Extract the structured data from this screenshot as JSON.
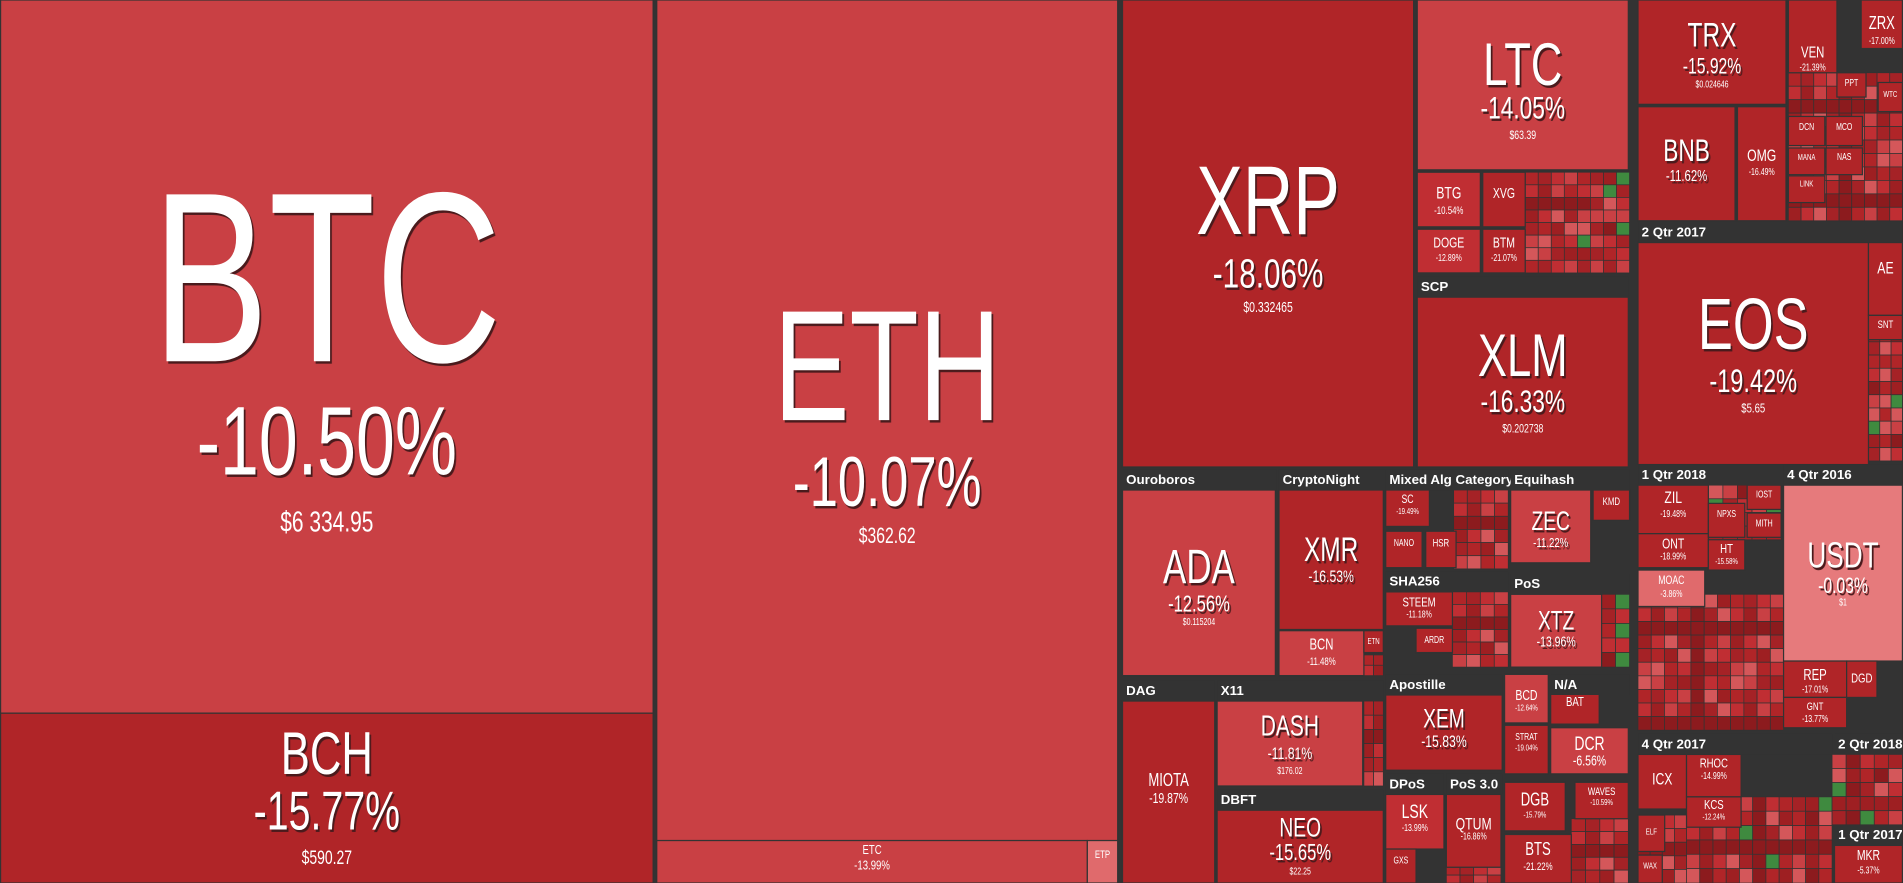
{
  "tiles": [
    {
      "symbol": "BTC",
      "change": "-10.50%",
      "price": "$6 334.95"
    },
    {
      "symbol": "BCH",
      "change": "-15.77%",
      "price": "$590.27"
    },
    {
      "symbol": "ETH",
      "change": "-10.07%",
      "price": "$362.62"
    },
    {
      "symbol": "ETC",
      "change": "-13.99%"
    },
    {
      "symbol": "ETP"
    },
    {
      "symbol": "XRP",
      "change": "-18.06%",
      "price": "$0.332465"
    },
    {
      "symbol": "LTC",
      "change": "-14.05%",
      "price": "$63.39"
    },
    {
      "symbol": "BTG",
      "change": "-10.54%"
    },
    {
      "symbol": "XVG"
    },
    {
      "symbol": "DOGE",
      "change": "-12.89%"
    },
    {
      "symbol": "BTM",
      "change": "-21.07%"
    },
    {
      "symbol": "XLM",
      "change": "-16.33%",
      "price": "$0.202738"
    },
    {
      "symbol": "TRX",
      "change": "-15.92%",
      "price": "$0.024646"
    },
    {
      "symbol": "VEN",
      "change": "-21.39%"
    },
    {
      "symbol": "ZRX",
      "change": "-17.00%"
    },
    {
      "symbol": "BNB",
      "change": "-11.62%"
    },
    {
      "symbol": "OMG",
      "change": "-16.49%"
    },
    {
      "symbol": "EOS",
      "change": "-19.42%",
      "price": "$5.65"
    },
    {
      "symbol": "AE"
    },
    {
      "symbol": "ZIL",
      "change": "-19.48%"
    },
    {
      "symbol": "ONT",
      "change": "-18.99%"
    },
    {
      "symbol": "MOAC",
      "change": "-3.86%"
    },
    {
      "symbol": "HT",
      "change": "-15.58%"
    },
    {
      "symbol": "USDT",
      "change": "-0.03%",
      "price": "$1"
    },
    {
      "symbol": "REP",
      "change": "-17.01%"
    },
    {
      "symbol": "DGD"
    },
    {
      "symbol": "GNT",
      "change": "-13.77%"
    },
    {
      "symbol": "ICX"
    },
    {
      "symbol": "RHOC",
      "change": "-14.99%"
    },
    {
      "symbol": "KCS",
      "change": "-12.24%"
    },
    {
      "symbol": "MKR",
      "change": "-5.37%"
    },
    {
      "symbol": "ADA",
      "change": "-12.56%",
      "price": "$0.115204"
    },
    {
      "symbol": "XMR",
      "change": "-16.53%"
    },
    {
      "symbol": "BCN",
      "change": "-11.48%"
    },
    {
      "symbol": "SC",
      "change": "-19.49%"
    },
    {
      "symbol": "NANO"
    },
    {
      "symbol": "HSR"
    },
    {
      "symbol": "ZEC",
      "change": "-11.22%"
    },
    {
      "symbol": "KMD"
    },
    {
      "symbol": "STEEM",
      "change": "-11.18%"
    },
    {
      "symbol": "ARDR"
    },
    {
      "symbol": "XTZ",
      "change": "-13.96%"
    },
    {
      "symbol": "MIOTA",
      "change": "-19.87%"
    },
    {
      "symbol": "DASH",
      "change": "-11.81%",
      "price": "$176.02"
    },
    {
      "symbol": "NEO",
      "change": "-15.65%",
      "price": "$22.25"
    },
    {
      "symbol": "XEM",
      "change": "-15.83%"
    },
    {
      "symbol": "BCD",
      "change": "-12.64%"
    },
    {
      "symbol": "STRAT",
      "change": "-19.04%"
    },
    {
      "symbol": "BAT"
    },
    {
      "symbol": "DCR",
      "change": "-6.56%"
    },
    {
      "symbol": "LSK",
      "change": "-13.99%"
    },
    {
      "symbol": "QTUM",
      "change": "-16.86%"
    },
    {
      "symbol": "GXS"
    },
    {
      "symbol": "DGB",
      "change": "-15.79%"
    },
    {
      "symbol": "WAVES",
      "change": "-10.59%"
    },
    {
      "symbol": "BTS",
      "change": "-21.22%"
    },
    {
      "symbol": "DCN"
    },
    {
      "symbol": "MCO"
    },
    {
      "symbol": "MANA"
    },
    {
      "symbol": "NAS"
    },
    {
      "symbol": "LINK"
    },
    {
      "symbol": "SNT"
    },
    {
      "symbol": "PPT"
    },
    {
      "symbol": "WTC"
    },
    {
      "symbol": "NPXS"
    },
    {
      "symbol": "IOST"
    },
    {
      "symbol": "MITH"
    },
    {
      "symbol": "WAX"
    },
    {
      "symbol": "ETN"
    },
    {
      "symbol": "ELF"
    }
  ],
  "groups": [
    "SCP",
    "2 Qtr 2017",
    "1 Qtr 2018",
    "4 Qtr 2016",
    "4 Qtr 2017",
    "2 Qtr 2018",
    "1 Qtr 2017",
    "Ouroboros",
    "CryptoNight",
    "Mixed Alg Category",
    "Equihash",
    "SHA256",
    "PoS",
    "DAG",
    "X11",
    "Apostille",
    "N/A",
    "DPoS",
    "PoS 3.0",
    "DBFT"
  ]
}
